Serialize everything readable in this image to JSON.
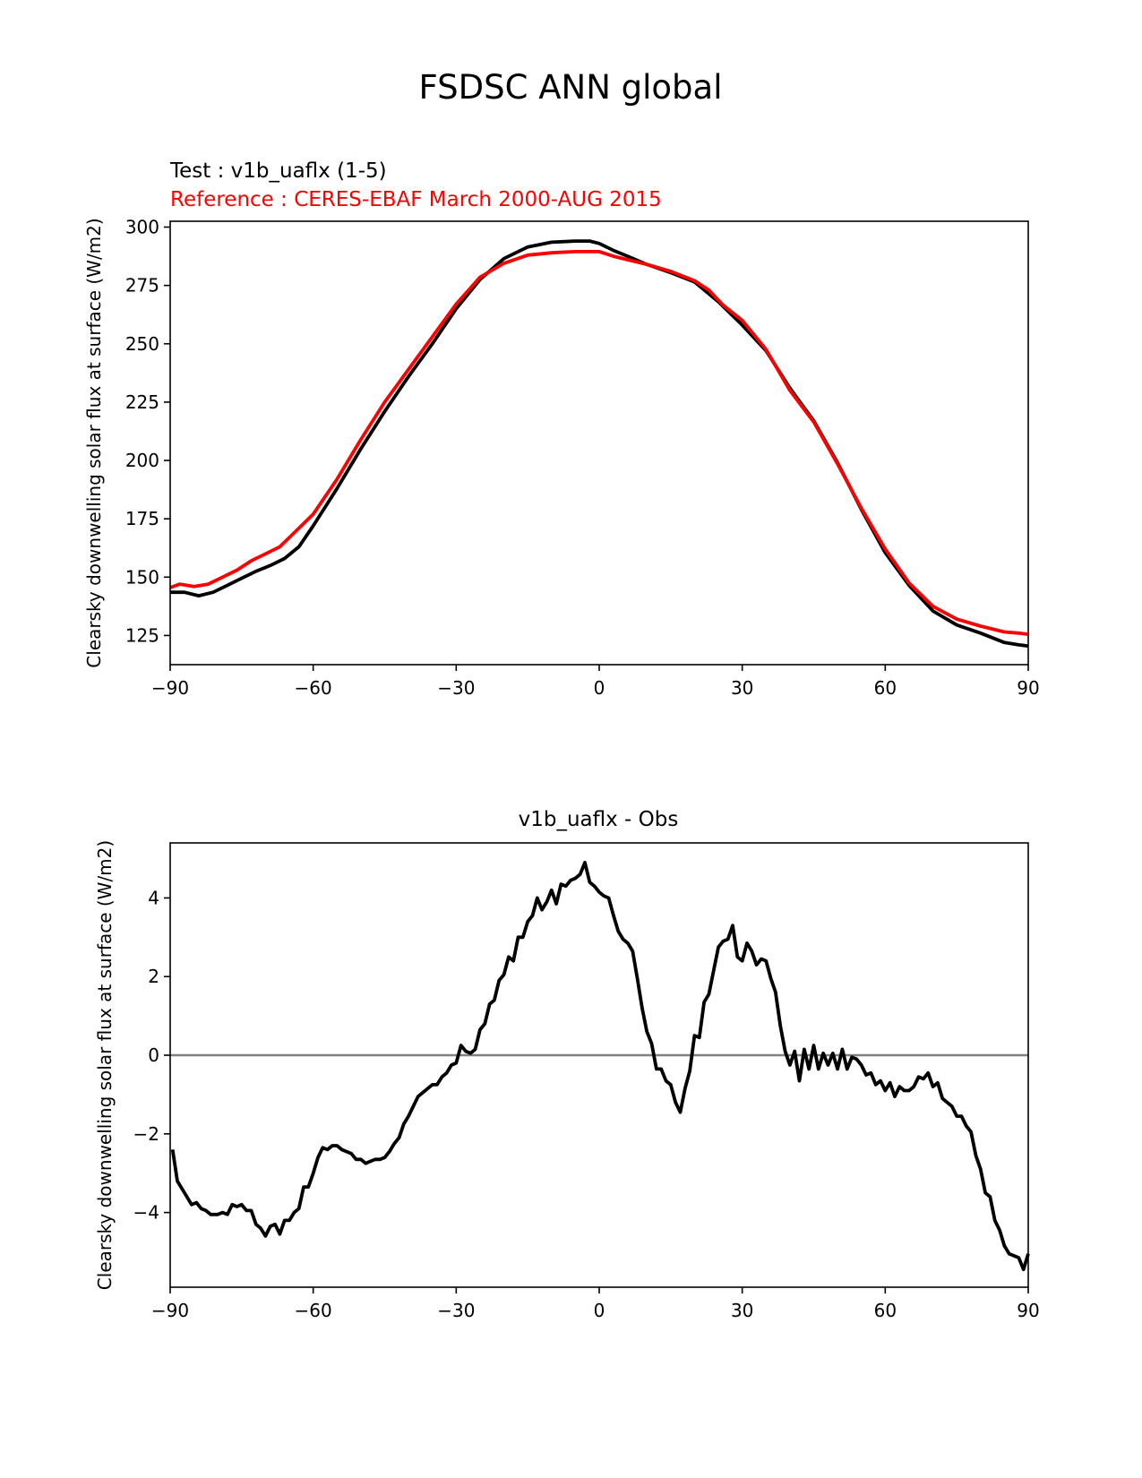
{
  "figure": {
    "title": "FSDSC ANN global"
  },
  "colors": {
    "test": "#000000",
    "reference": "#ff0000",
    "zero_line": "#808080"
  },
  "chart_data": [
    {
      "type": "line",
      "test_label": "Test : v1b_uaflx (1-5)",
      "reference_label": "Reference : CERES-EBAF March 2000-AUG 2015",
      "ylabel": "Clearsky downwelling solar flux at surface (W/m2)",
      "xlim": [
        -90,
        90
      ],
      "ylim": [
        112.5,
        302.5
      ],
      "xticks": [
        -90,
        -60,
        -30,
        0,
        30,
        60,
        90
      ],
      "xtick_labels": [
        "−90",
        "−60",
        "−30",
        "0",
        "30",
        "60",
        "90"
      ],
      "yticks": [
        125,
        150,
        175,
        200,
        225,
        250,
        275,
        300
      ],
      "ytick_labels": [
        "125",
        "150",
        "175",
        "200",
        "225",
        "250",
        "275",
        "300"
      ],
      "series": [
        {
          "key": "test",
          "x": [
            -90,
            -87,
            -84,
            -81,
            -78,
            -75,
            -72,
            -69,
            -66,
            -63,
            -60,
            -55,
            -50,
            -45,
            -40,
            -35,
            -30,
            -25,
            -20,
            -15,
            -10,
            -5,
            -2,
            0,
            3,
            6,
            10,
            15,
            20,
            25,
            30,
            35,
            40,
            45,
            50,
            55,
            60,
            65,
            70,
            75,
            80,
            85,
            88,
            90
          ],
          "y": [
            143.5,
            143.5,
            142,
            143.5,
            146.5,
            149.5,
            152.5,
            155,
            158,
            163,
            172,
            188,
            205,
            221,
            236,
            250,
            265,
            277.5,
            286.5,
            291.5,
            293.5,
            294,
            294,
            293,
            290,
            287.5,
            284,
            280.5,
            276.5,
            268,
            258,
            247,
            231,
            217,
            199,
            179,
            160.5,
            146.5,
            135.5,
            129.5,
            126,
            122,
            121,
            120.5
          ]
        },
        {
          "key": "reference",
          "x": [
            -90,
            -88,
            -85,
            -82,
            -79,
            -76,
            -73,
            -70,
            -67,
            -64,
            -60,
            -55,
            -50,
            -45,
            -40,
            -35,
            -30,
            -25,
            -20,
            -15,
            -10,
            -5,
            0,
            3,
            6,
            10,
            15,
            20,
            23,
            26,
            30,
            35,
            40,
            45,
            50,
            55,
            60,
            65,
            70,
            75,
            80,
            85,
            88,
            90
          ],
          "y": [
            145.5,
            147,
            146,
            147,
            150,
            153,
            157,
            160,
            163,
            169,
            177,
            192,
            209,
            225,
            239,
            253,
            267,
            278.5,
            284.5,
            288,
            289,
            289.5,
            289.5,
            287.5,
            286,
            284,
            281,
            277,
            273,
            266.5,
            260,
            247.5,
            230,
            216.5,
            198.5,
            179.5,
            162,
            147.5,
            137.5,
            132,
            129,
            126.5,
            126,
            125.5
          ]
        }
      ]
    },
    {
      "type": "line",
      "title": "v1b_uaflx - Obs",
      "ylabel": "Clearsky downwelling solar flux at surface (W/m2)",
      "xlim": [
        -90,
        90
      ],
      "ylim": [
        -5.9,
        5.4
      ],
      "xticks": [
        -90,
        -60,
        -30,
        0,
        30,
        60,
        90
      ],
      "xtick_labels": [
        "−90",
        "−60",
        "−30",
        "0",
        "30",
        "60",
        "90"
      ],
      "yticks": [
        -4,
        -2,
        0,
        2,
        4
      ],
      "ytick_labels": [
        "−4",
        "−2",
        "0",
        "2",
        "4"
      ],
      "zero_line": 0,
      "series": [
        {
          "key": "test",
          "x": [
            -89.5,
            -88.5,
            -87,
            -85.5,
            -84.5,
            -83.5,
            -82.5,
            -81.5,
            -80,
            -79,
            -78,
            -77,
            -76,
            -75,
            -74,
            -73,
            -72,
            -71,
            -70,
            -69,
            -68,
            -67,
            -66,
            -65,
            -64,
            -63,
            -62,
            -61,
            -60,
            -59,
            -58,
            -57,
            -56,
            -55,
            -54,
            -53,
            -52,
            -51,
            -50,
            -49,
            -48,
            -47,
            -46,
            -45,
            -44,
            -43,
            -42,
            -41,
            -40,
            -39,
            -38,
            -37,
            -36,
            -35,
            -34,
            -33,
            -32,
            -31,
            -30,
            -29,
            -28,
            -27,
            -26,
            -25,
            -24,
            -23,
            -22,
            -21,
            -20,
            -19,
            -18,
            -17,
            -16,
            -15,
            -14,
            -13,
            -12,
            -11,
            -10,
            -9,
            -8,
            -7,
            -6,
            -5,
            -4,
            -3,
            -2,
            -1,
            0,
            1,
            2,
            3,
            4,
            5,
            6,
            7,
            8,
            9,
            10,
            11,
            12,
            13,
            14,
            15,
            16,
            17,
            18,
            19,
            20,
            21,
            22,
            23,
            24,
            25,
            26,
            27,
            28,
            29,
            30,
            31,
            32,
            33,
            34,
            35,
            36,
            37,
            38,
            39,
            40,
            41,
            42,
            43,
            44,
            45,
            46,
            47,
            48,
            49,
            50,
            51,
            52,
            53,
            54,
            55,
            56,
            57,
            58,
            59,
            60,
            61,
            62,
            63,
            64,
            65,
            66,
            67,
            68,
            69,
            70,
            71,
            72,
            73,
            74,
            75,
            76,
            77,
            78,
            79,
            80,
            81,
            82,
            83,
            84,
            85,
            86,
            87,
            88,
            89,
            90
          ],
          "y": [
            -2.4,
            -3.2,
            -3.5,
            -3.8,
            -3.75,
            -3.9,
            -3.95,
            -4.05,
            -4.05,
            -4.0,
            -4.05,
            -3.8,
            -3.85,
            -3.8,
            -3.95,
            -3.95,
            -4.3,
            -4.4,
            -4.6,
            -4.35,
            -4.3,
            -4.55,
            -4.2,
            -4.2,
            -4.0,
            -3.9,
            -3.35,
            -3.35,
            -3.0,
            -2.6,
            -2.35,
            -2.4,
            -2.3,
            -2.3,
            -2.4,
            -2.45,
            -2.5,
            -2.65,
            -2.65,
            -2.75,
            -2.7,
            -2.65,
            -2.65,
            -2.6,
            -2.45,
            -2.25,
            -2.1,
            -1.75,
            -1.55,
            -1.3,
            -1.05,
            -0.95,
            -0.85,
            -0.75,
            -0.75,
            -0.55,
            -0.45,
            -0.25,
            -0.2,
            0.25,
            0.1,
            0.05,
            0.15,
            0.65,
            0.8,
            1.3,
            1.4,
            1.9,
            2.05,
            2.5,
            2.4,
            3.0,
            3.0,
            3.4,
            3.55,
            4.0,
            3.7,
            3.9,
            4.2,
            3.85,
            4.35,
            4.3,
            4.45,
            4.5,
            4.6,
            4.9,
            4.4,
            4.3,
            4.15,
            4.05,
            4.0,
            3.55,
            3.15,
            2.95,
            2.85,
            2.65,
            1.95,
            1.2,
            0.6,
            0.3,
            -0.35,
            -0.35,
            -0.65,
            -0.75,
            -1.2,
            -1.45,
            -0.85,
            -0.4,
            0.5,
            0.45,
            1.35,
            1.55,
            2.15,
            2.75,
            2.9,
            2.95,
            3.3,
            2.5,
            2.4,
            2.85,
            2.65,
            2.3,
            2.45,
            2.4,
            1.95,
            1.6,
            0.75,
            0.1,
            -0.25,
            0.1,
            -0.65,
            0.15,
            -0.35,
            0.25,
            -0.35,
            0.05,
            -0.25,
            0.05,
            -0.35,
            0.15,
            -0.35,
            -0.05,
            -0.1,
            -0.25,
            -0.5,
            -0.45,
            -0.75,
            -0.65,
            -0.9,
            -0.7,
            -1.05,
            -0.8,
            -0.9,
            -0.9,
            -0.8,
            -0.55,
            -0.6,
            -0.45,
            -0.8,
            -0.7,
            -1.1,
            -1.2,
            -1.3,
            -1.55,
            -1.55,
            -1.8,
            -1.95,
            -2.55,
            -2.9,
            -3.5,
            -3.6,
            -4.2,
            -4.45,
            -4.85,
            -5.05,
            -5.1,
            -5.15,
            -5.45,
            -5.05
          ]
        }
      ]
    }
  ]
}
